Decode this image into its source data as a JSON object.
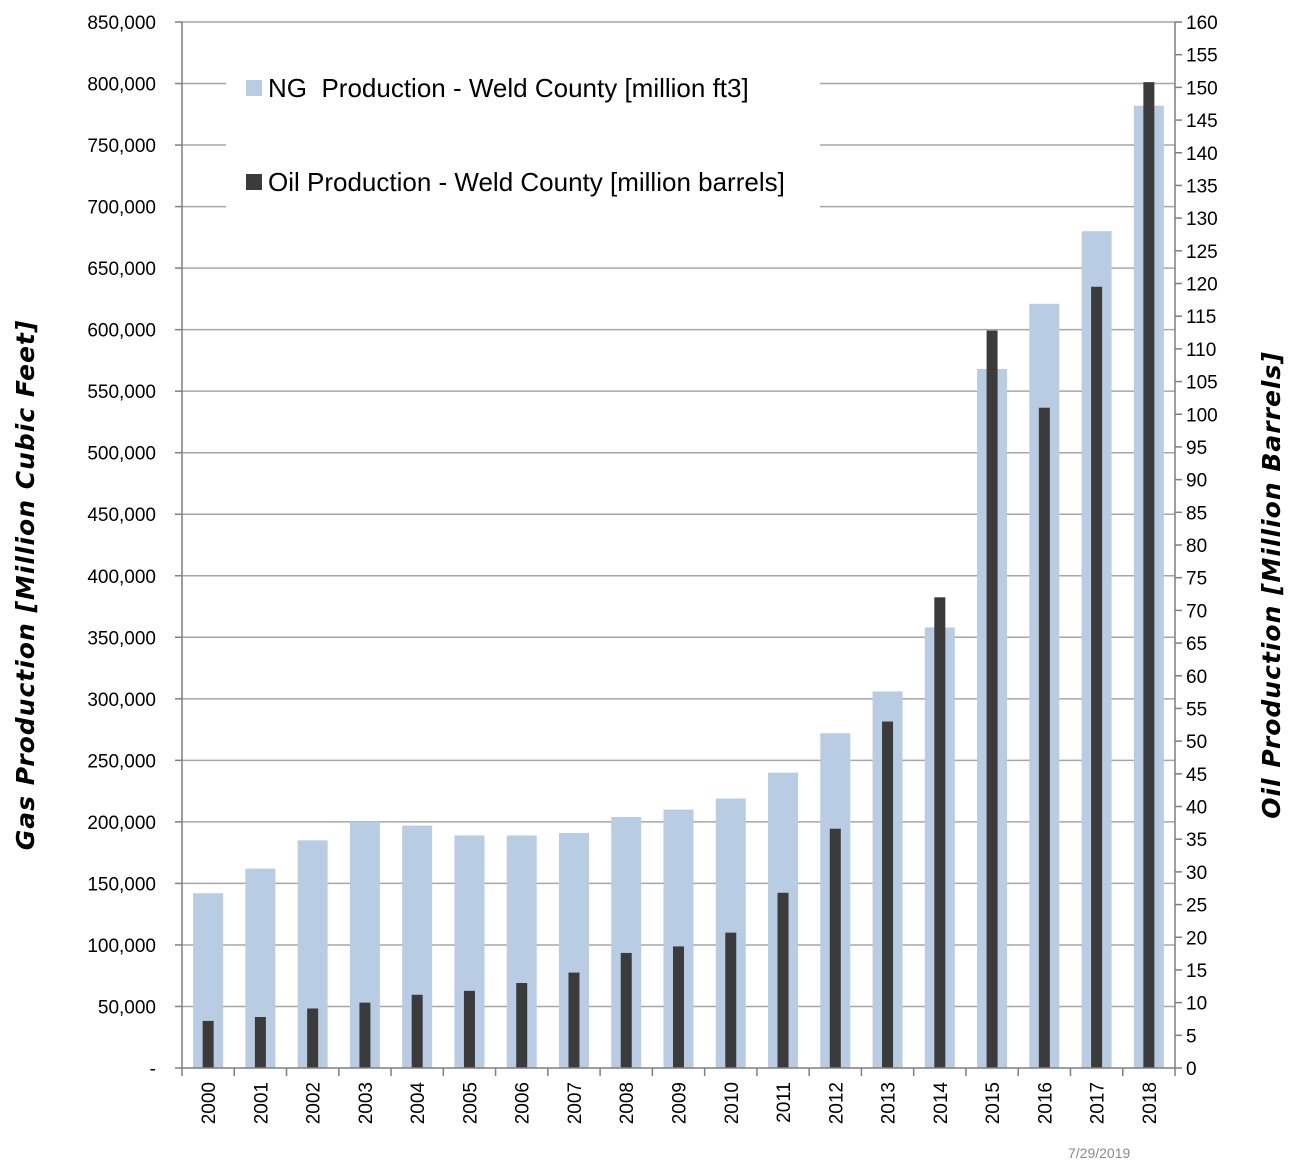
{
  "chart_data": {
    "type": "bar",
    "categories": [
      "2000",
      "2001",
      "2002",
      "2003",
      "2004",
      "2005",
      "2006",
      "2007",
      "2008",
      "2009",
      "2010",
      "2011",
      "2012",
      "2013",
      "2014",
      "2015",
      "2016",
      "2017",
      "2018"
    ],
    "series": [
      {
        "name": "NG  Production - Weld County [million ft3]",
        "axis": "left",
        "color": "#b8cce4",
        "values": [
          142000,
          162000,
          185000,
          200000,
          197000,
          189000,
          189000,
          191000,
          204000,
          210000,
          219000,
          240000,
          272000,
          306000,
          358000,
          568000,
          621000,
          680000,
          782000
        ]
      },
      {
        "name": "Oil Production - Weld County [million barrels]",
        "axis": "right",
        "color": "#3b3b3b",
        "values": [
          7.2,
          7.8,
          9.1,
          10.0,
          11.2,
          11.8,
          13.0,
          14.6,
          17.6,
          18.6,
          20.7,
          26.8,
          36.6,
          53.0,
          72.0,
          112.8,
          101.0,
          119.5,
          150.8
        ]
      }
    ],
    "ylabel": "Gas Production  [Million Cubic Feet]",
    "y2label": "Oil Production  [Million Barrels]",
    "ylim": [
      0,
      850000
    ],
    "y2lim": [
      0,
      160
    ],
    "yticks": [
      {
        "value": 0,
        "label": "-"
      },
      {
        "value": 50000,
        "label": "50,000"
      },
      {
        "value": 100000,
        "label": "100,000"
      },
      {
        "value": 150000,
        "label": "150,000"
      },
      {
        "value": 200000,
        "label": "200,000"
      },
      {
        "value": 250000,
        "label": "250,000"
      },
      {
        "value": 300000,
        "label": "300,000"
      },
      {
        "value": 350000,
        "label": "350,000"
      },
      {
        "value": 400000,
        "label": "400,000"
      },
      {
        "value": 450000,
        "label": "450,000"
      },
      {
        "value": 500000,
        "label": "500,000"
      },
      {
        "value": 550000,
        "label": "550,000"
      },
      {
        "value": 600000,
        "label": "600,000"
      },
      {
        "value": 650000,
        "label": "650,000"
      },
      {
        "value": 700000,
        "label": "700,000"
      },
      {
        "value": 750000,
        "label": "750,000"
      },
      {
        "value": 800000,
        "label": "800,000"
      },
      {
        "value": 850000,
        "label": "850,000"
      }
    ],
    "y2ticks": [
      {
        "value": 0,
        "label": "0"
      },
      {
        "value": 5,
        "label": "5"
      },
      {
        "value": 10,
        "label": "10"
      },
      {
        "value": 15,
        "label": "15"
      },
      {
        "value": 20,
        "label": "20"
      },
      {
        "value": 25,
        "label": "25"
      },
      {
        "value": 30,
        "label": "30"
      },
      {
        "value": 35,
        "label": "35"
      },
      {
        "value": 40,
        "label": "40"
      },
      {
        "value": 45,
        "label": "45"
      },
      {
        "value": 50,
        "label": "50"
      },
      {
        "value": 55,
        "label": "55"
      },
      {
        "value": 60,
        "label": "60"
      },
      {
        "value": 65,
        "label": "65"
      },
      {
        "value": 70,
        "label": "70"
      },
      {
        "value": 75,
        "label": "75"
      },
      {
        "value": 80,
        "label": "80"
      },
      {
        "value": 85,
        "label": "85"
      },
      {
        "value": 90,
        "label": "90"
      },
      {
        "value": 95,
        "label": "95"
      },
      {
        "value": 100,
        "label": "100"
      },
      {
        "value": 105,
        "label": "105"
      },
      {
        "value": 110,
        "label": "110"
      },
      {
        "value": 115,
        "label": "115"
      },
      {
        "value": 120,
        "label": "120"
      },
      {
        "value": 125,
        "label": "125"
      },
      {
        "value": 130,
        "label": "130"
      },
      {
        "value": 135,
        "label": "135"
      },
      {
        "value": 140,
        "label": "140"
      },
      {
        "value": 145,
        "label": "145"
      },
      {
        "value": 150,
        "label": "150"
      },
      {
        "value": 155,
        "label": "155"
      },
      {
        "value": 160,
        "label": "160"
      }
    ],
    "grid": true,
    "legend_position": "top-left"
  },
  "footer": {
    "date": "7/29/2019"
  }
}
